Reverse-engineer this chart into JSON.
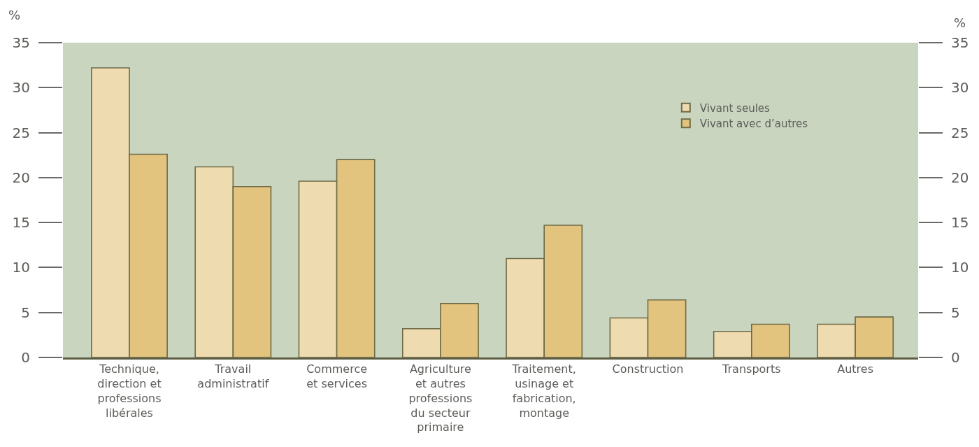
{
  "chart_data": {
    "type": "bar",
    "ylabel": "%",
    "y2label": "%",
    "categories": [
      "Technique,\ndirection et\nprofessions\nlibérales",
      "Travail\nadministratif",
      "Commerce\net services",
      "Agriculture\net autres\nprofessions\ndu secteur\nprimaire",
      "Traitement,\nusinage et\nfabrication,\nmontage",
      "Construction",
      "Transports",
      "Autres"
    ],
    "series": [
      {
        "name": "Vivant seules",
        "color": "#efdbb0",
        "values": [
          32.2,
          21.2,
          19.6,
          3.2,
          11.0,
          4.4,
          2.9,
          3.7
        ]
      },
      {
        "name": "Vivant avec d’autres",
        "color": "#e3c47e",
        "values": [
          22.6,
          19.0,
          22.0,
          6.0,
          14.7,
          6.4,
          3.7,
          4.5
        ]
      }
    ],
    "ylim": [
      0,
      35
    ],
    "yticks": [
      0,
      5,
      10,
      15,
      20,
      25,
      30,
      35
    ],
    "y2lim": [
      0,
      35
    ],
    "y2ticks": [
      0,
      5,
      10,
      15,
      20,
      25,
      30,
      35
    ],
    "grid": false,
    "legend": "top right"
  }
}
